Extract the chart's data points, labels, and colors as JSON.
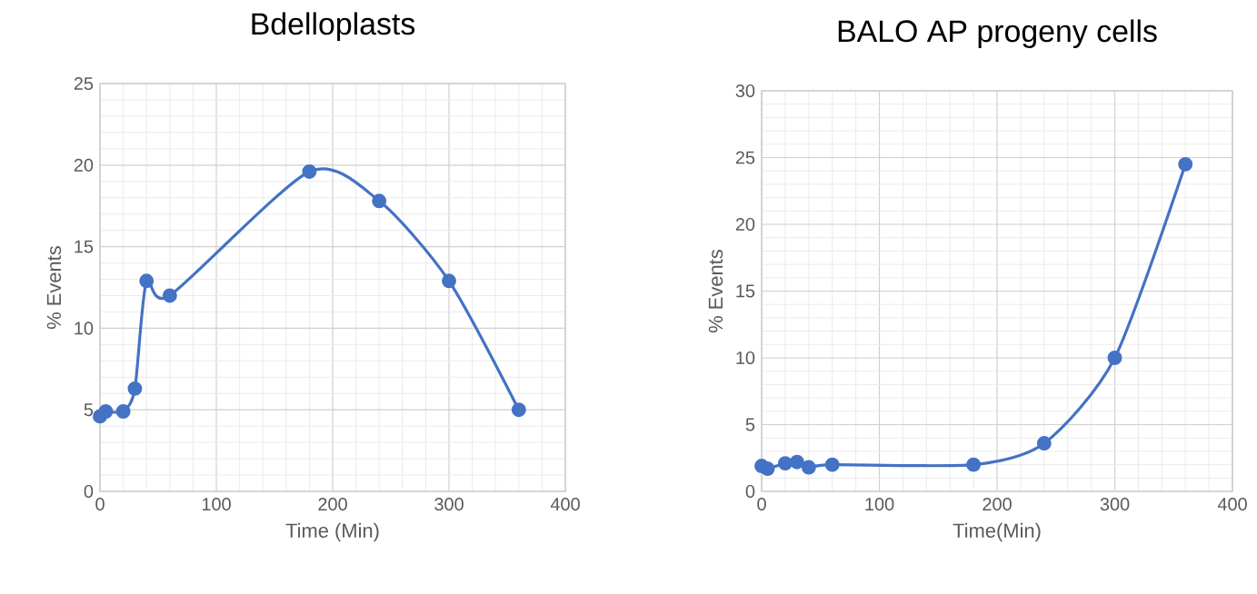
{
  "chart_data": [
    {
      "type": "line",
      "title": "Bdelloplasts",
      "xlabel": "Time (Min)",
      "ylabel": "% Events",
      "x": [
        0,
        5,
        20,
        30,
        40,
        60,
        180,
        240,
        300,
        360
      ],
      "series": [
        {
          "color": "#4472c4",
          "values": [
            4.6,
            4.9,
            4.9,
            6.3,
            12.9,
            12.0,
            19.6,
            17.8,
            12.9,
            5.0
          ]
        }
      ],
      "marker": "circle",
      "xlim": [
        0,
        400
      ],
      "xticks": [
        0,
        100,
        200,
        300,
        400
      ],
      "ylim": [
        0,
        25
      ],
      "yticks": [
        0,
        5,
        10,
        15,
        20,
        25
      ],
      "grid": true
    },
    {
      "type": "line",
      "title": "BALO AP progeny cells",
      "xlabel": "Time(Min)",
      "ylabel": "% Events",
      "x": [
        0,
        5,
        20,
        30,
        40,
        60,
        180,
        240,
        300,
        360
      ],
      "series": [
        {
          "color": "#4472c4",
          "values": [
            1.9,
            1.7,
            2.1,
            2.2,
            1.8,
            2.0,
            2.0,
            3.6,
            10.0,
            24.5
          ]
        }
      ],
      "marker": "circle",
      "xlim": [
        0,
        400
      ],
      "xticks": [
        0,
        100,
        200,
        300,
        400
      ],
      "ylim": [
        0,
        30
      ],
      "yticks": [
        0,
        5,
        10,
        15,
        20,
        25,
        30
      ],
      "grid": true
    }
  ]
}
